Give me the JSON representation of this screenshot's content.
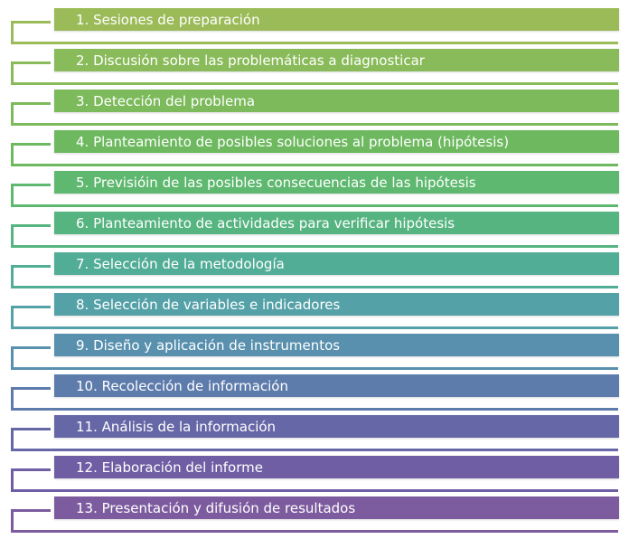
{
  "steps": [
    {
      "label": "1. Sesiones de preparación",
      "color": "#9bbb59"
    },
    {
      "label": "2. Discusión sobre las problemáticas a diagnosticar",
      "color": "#8abb5a"
    },
    {
      "label": "3. Detección del problema",
      "color": "#7cba5c"
    },
    {
      "label": "4. Planteamiento de posibles soluciones al problema (hipótesis)",
      "color": "#6eb960"
    },
    {
      "label": "5. Previsióin de las posibles consecuencias de las hipótesis",
      "color": "#5fb86f"
    },
    {
      "label": "6. Planteamiento de actividades para verificar hipótesis",
      "color": "#56b480"
    },
    {
      "label": "7. Selección de la metodología",
      "color": "#52ad96"
    },
    {
      "label": "8. Selección de variables e indicadores",
      "color": "#55a1a8"
    },
    {
      "label": "9. Diseño y aplicación de instrumentos",
      "color": "#5890ae"
    },
    {
      "label": "10. Recolección de información",
      "color": "#5d7bab"
    },
    {
      "label": "11. Análisis de la información",
      "color": "#6667a6"
    },
    {
      "label": "12. Elaboración del informe",
      "color": "#6f5ea3"
    },
    {
      "label": "13. Presentación y difusión de resultados",
      "color": "#7d5b9f"
    }
  ]
}
